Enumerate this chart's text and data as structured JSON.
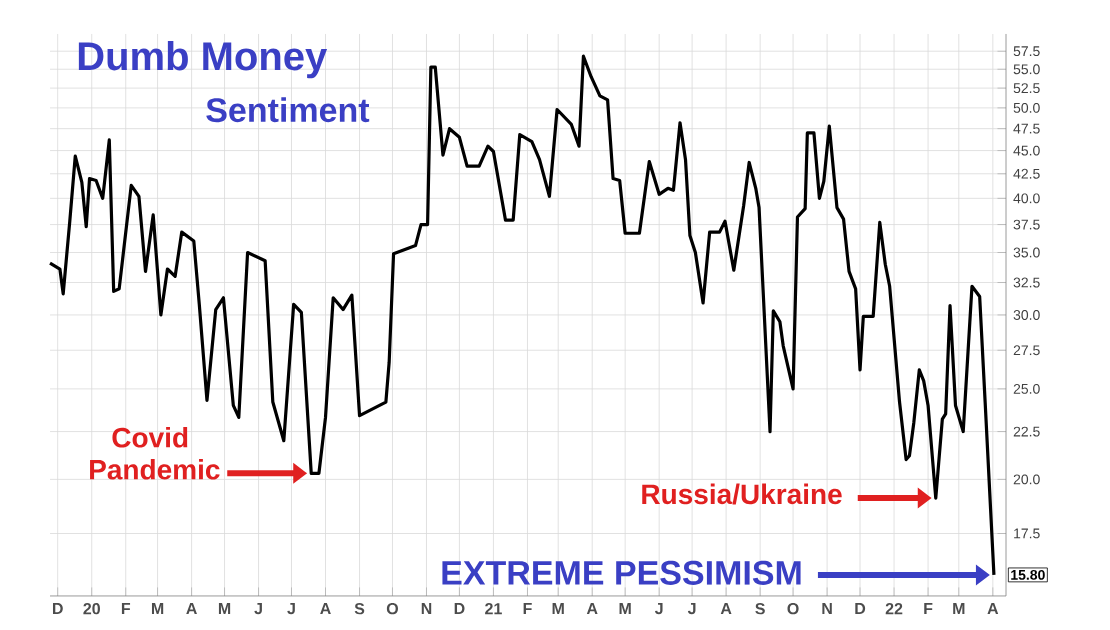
{
  "chart_data": {
    "type": "line",
    "title": "Dumb Money",
    "subtitle": "Sentiment",
    "log": "y",
    "grid": true,
    "color": "#000000",
    "x": [
      "2019-11-24",
      "2019-12-03",
      "2019-12-06",
      "2019-12-12",
      "2019-12-17",
      "2019-12-23",
      "2019-12-27",
      "2019-12-30",
      "2020-01-05",
      "2020-01-11",
      "2020-01-17",
      "2020-01-21",
      "2020-01-26",
      "2020-02-06",
      "2020-02-13",
      "2020-02-19",
      "2020-02-26",
      "2020-03-04",
      "2020-03-10",
      "2020-03-17",
      "2020-03-23",
      "2020-04-03",
      "2020-04-08",
      "2020-04-15",
      "2020-04-23",
      "2020-04-30",
      "2020-05-09",
      "2020-05-14",
      "2020-05-22",
      "2020-06-07",
      "2020-06-14",
      "2020-06-24",
      "2020-07-03",
      "2020-07-10",
      "2020-07-19",
      "2020-07-26",
      "2020-08-01",
      "2020-08-08",
      "2020-08-17",
      "2020-08-25",
      "2020-09-01",
      "2020-09-25",
      "2020-09-28",
      "2020-10-02",
      "2020-10-16",
      "2020-10-22",
      "2020-10-27",
      "2020-11-02",
      "2020-11-05",
      "2020-11-09",
      "2020-11-16",
      "2020-11-22",
      "2020-12-01",
      "2020-12-08",
      "2020-12-19",
      "2020-12-27",
      "2021-01-01",
      "2021-01-12",
      "2021-01-19",
      "2021-01-25",
      "2021-02-05",
      "2021-02-12",
      "2021-02-21",
      "2021-02-28",
      "2021-03-13",
      "2021-03-20",
      "2021-03-24",
      "2021-03-31",
      "2021-04-08",
      "2021-04-15",
      "2021-04-20",
      "2021-04-26",
      "2021-05-01",
      "2021-05-14",
      "2021-05-23",
      "2021-06-01",
      "2021-06-09",
      "2021-06-14",
      "2021-06-20",
      "2021-06-25",
      "2021-06-29",
      "2021-07-04",
      "2021-07-11",
      "2021-07-17",
      "2021-07-26",
      "2021-07-31",
      "2021-08-08",
      "2021-08-17",
      "2021-08-22",
      "2021-08-28",
      "2021-08-31",
      "2021-09-10",
      "2021-09-13",
      "2021-09-19",
      "2021-09-22",
      "2021-10-01",
      "2021-10-05",
      "2021-10-12",
      "2021-10-14",
      "2021-10-20",
      "2021-10-25",
      "2021-10-29",
      "2021-11-03",
      "2021-11-10",
      "2021-11-16",
      "2021-11-21",
      "2021-11-27",
      "2021-12-01",
      "2021-12-04",
      "2021-12-13",
      "2021-12-19",
      "2021-12-24",
      "2021-12-28",
      "2022-01-06",
      "2022-01-12",
      "2022-01-15",
      "2022-01-19",
      "2022-01-24",
      "2022-01-28",
      "2022-02-01",
      "2022-02-08",
      "2022-02-14",
      "2022-02-17",
      "2022-02-21",
      "2022-02-26",
      "2022-03-05",
      "2022-03-13",
      "2022-03-20",
      "2022-03-25",
      "2022-04-02"
    ],
    "values": [
      34.1,
      33.6,
      31.6,
      37.8,
      44.4,
      41.6,
      37.3,
      42.0,
      41.8,
      40.0,
      46.2,
      31.8,
      32.0,
      41.3,
      40.2,
      33.4,
      38.4,
      30.0,
      33.6,
      33.0,
      36.8,
      36.0,
      30.8,
      24.3,
      30.4,
      31.3,
      24.0,
      23.3,
      35.0,
      34.3,
      24.2,
      22.0,
      30.8,
      30.2,
      20.3,
      20.3,
      23.3,
      31.3,
      30.4,
      31.5,
      23.4,
      24.2,
      26.7,
      34.9,
      35.4,
      35.6,
      37.5,
      37.5,
      55.3,
      55.3,
      44.5,
      47.5,
      46.5,
      43.3,
      43.3,
      45.5,
      44.9,
      37.9,
      37.9,
      46.8,
      46.0,
      44.0,
      40.2,
      49.8,
      48.0,
      45.5,
      56.8,
      54.0,
      51.5,
      51.0,
      42.0,
      41.8,
      36.7,
      36.7,
      43.8,
      40.4,
      41.0,
      40.8,
      48.2,
      44.0,
      36.5,
      35.0,
      30.9,
      36.8,
      36.8,
      37.8,
      33.5,
      39.3,
      43.7,
      41.0,
      39.1,
      22.5,
      30.3,
      29.5,
      27.8,
      25.0,
      38.2,
      39.0,
      47.0,
      47.0,
      40.0,
      41.7,
      47.8,
      39.1,
      38.0,
      33.4,
      32.0,
      26.2,
      29.9,
      29.9,
      37.7,
      34.0,
      32.2,
      24.2,
      21.0,
      21.2,
      23.0,
      26.2,
      25.5,
      24.0,
      19.1,
      23.2,
      23.5,
      30.7,
      24.0,
      22.5,
      32.2,
      31.4,
      24.2,
      15.8
    ],
    "xlim": [
      "2019-11-24",
      "2022-04-13"
    ],
    "xticks": [
      {
        "value": "2019-12-01",
        "label": "D"
      },
      {
        "value": "2020-01-01",
        "label": "20"
      },
      {
        "value": "2020-02-01",
        "label": "F"
      },
      {
        "value": "2020-03-01",
        "label": "M"
      },
      {
        "value": "2020-04-01",
        "label": "A"
      },
      {
        "value": "2020-05-01",
        "label": "M"
      },
      {
        "value": "2020-06-01",
        "label": "J"
      },
      {
        "value": "2020-07-01",
        "label": "J"
      },
      {
        "value": "2020-08-01",
        "label": "A"
      },
      {
        "value": "2020-09-01",
        "label": "S"
      },
      {
        "value": "2020-10-01",
        "label": "O"
      },
      {
        "value": "2020-11-01",
        "label": "N"
      },
      {
        "value": "2020-12-01",
        "label": "D"
      },
      {
        "value": "2021-01-01",
        "label": "21"
      },
      {
        "value": "2021-02-01",
        "label": "F"
      },
      {
        "value": "2021-03-01",
        "label": "M"
      },
      {
        "value": "2021-04-01",
        "label": "A"
      },
      {
        "value": "2021-05-01",
        "label": "M"
      },
      {
        "value": "2021-06-01",
        "label": "J"
      },
      {
        "value": "2021-07-01",
        "label": "J"
      },
      {
        "value": "2021-08-01",
        "label": "A"
      },
      {
        "value": "2021-09-01",
        "label": "S"
      },
      {
        "value": "2021-10-01",
        "label": "O"
      },
      {
        "value": "2021-11-01",
        "label": "N"
      },
      {
        "value": "2021-12-01",
        "label": "D"
      },
      {
        "value": "2022-01-01",
        "label": "22"
      },
      {
        "value": "2022-02-01",
        "label": "F"
      },
      {
        "value": "2022-03-01",
        "label": "M"
      },
      {
        "value": "2022-04-01",
        "label": "A"
      }
    ],
    "ylim": [
      15,
      60
    ],
    "yticks": [
      17.5,
      {
        "value": 20,
        "label": "20.0"
      },
      22.5,
      {
        "value": 25,
        "label": "25.0"
      },
      27.5,
      {
        "value": 30,
        "label": "30.0"
      },
      32.5,
      {
        "value": 35,
        "label": "35.0"
      },
      37.5,
      {
        "value": 40,
        "label": "40.0"
      },
      42.5,
      {
        "value": 45,
        "label": "45.0"
      },
      47.5,
      {
        "value": 50,
        "label": "50.0"
      },
      52.5,
      {
        "value": 55,
        "label": "55.0"
      },
      57.5
    ],
    "annotations": [
      {
        "text": "Covid Pandemic",
        "x": "2020-07-19",
        "y": 20.3
      },
      {
        "text": "Russia/Ukraine",
        "x": "2022-02-08",
        "y": 19.1
      },
      {
        "text": "EXTREME PESSIMISM",
        "x": "2022-04-02",
        "y": 15.8
      },
      {
        "text": "15.80",
        "x": "2022-04-02",
        "y": 15.8
      }
    ]
  }
}
